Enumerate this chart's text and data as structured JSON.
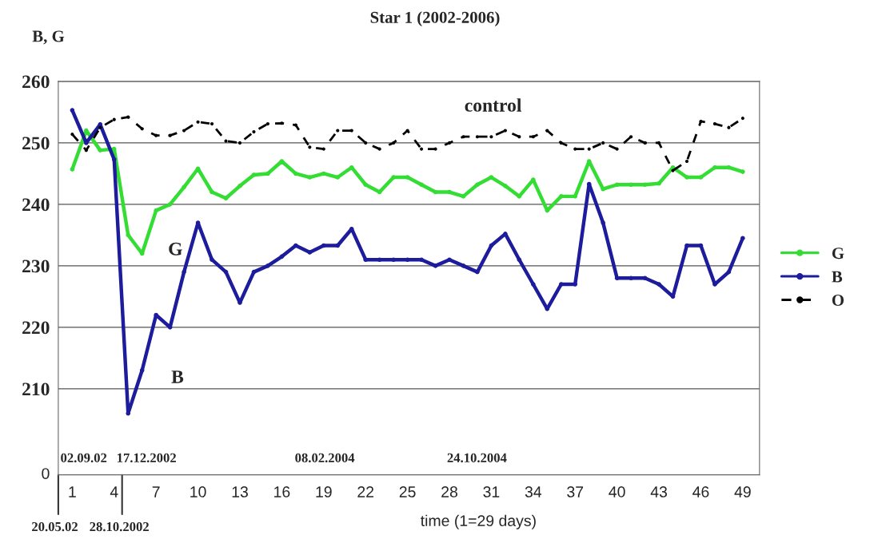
{
  "chart_data": {
    "type": "line",
    "title": "Star 1 (2002-2006)",
    "ylabel": "B, G",
    "xlabel": "time (1=29 days)",
    "x": [
      1,
      2,
      3,
      4,
      5,
      6,
      7,
      8,
      9,
      10,
      11,
      12,
      13,
      14,
      15,
      16,
      17,
      18,
      19,
      20,
      21,
      22,
      23,
      24,
      25,
      26,
      27,
      28,
      29,
      30,
      31,
      32,
      33,
      34,
      35,
      36,
      37,
      38,
      39,
      40,
      41,
      42,
      43,
      44,
      45,
      46,
      47,
      48,
      49
    ],
    "series": [
      {
        "name": "G",
        "color": "#33dd33",
        "line_style": "solid",
        "values": [
          245.7,
          252,
          248.8,
          249,
          235,
          232,
          239,
          240,
          242.8,
          245.8,
          242,
          241,
          243,
          244.8,
          245,
          247,
          245,
          244.4,
          245,
          244.4,
          246,
          243.2,
          242,
          244.4,
          244.4,
          243.2,
          242,
          242,
          241.3,
          243.2,
          244.4,
          243,
          241.3,
          244,
          239,
          241.3,
          241.3,
          247,
          242.5,
          243.2,
          243.2,
          243.2,
          243.4,
          246,
          244.4,
          244.4,
          246,
          246,
          245.3
        ]
      },
      {
        "name": "B",
        "color": "#1c1c9c",
        "line_style": "solid",
        "values": [
          255.3,
          250,
          253,
          247.3,
          206,
          213,
          222,
          220,
          229,
          237,
          231,
          229,
          224,
          229,
          230,
          231.5,
          233.3,
          232.2,
          233.3,
          233.3,
          236,
          231,
          231,
          231,
          231,
          231,
          230,
          231,
          230,
          229,
          233.3,
          235.2,
          231,
          227,
          223,
          227,
          227,
          243.3,
          237,
          228,
          228,
          228,
          227,
          225,
          233.3,
          233.3,
          227,
          229,
          234.5
        ]
      },
      {
        "name": "O",
        "color": "#000000",
        "line_style": "dashed",
        "values": [
          251.4,
          248.8,
          252.5,
          253.8,
          254.2,
          252.3,
          251.2,
          251.2,
          252,
          253.4,
          253.1,
          250.3,
          250,
          251.8,
          253.1,
          253.2,
          252.9,
          249.3,
          249,
          252,
          252,
          250,
          249,
          250,
          252,
          249,
          249,
          250,
          251,
          251,
          251,
          252,
          251,
          251,
          252,
          250,
          249,
          249,
          250,
          249,
          251,
          250,
          250,
          245.5,
          247,
          253.5,
          253.1,
          252.5,
          254
        ]
      }
    ],
    "xlim": [
      0,
      50.2
    ],
    "ylim": [
      196,
      260
    ],
    "xticks": [
      1,
      4,
      7,
      10,
      13,
      16,
      19,
      22,
      25,
      28,
      31,
      34,
      37,
      40,
      43,
      46,
      49
    ],
    "yticks": [
      210,
      220,
      230,
      240,
      250,
      260
    ],
    "grid": "y",
    "legend": "right",
    "marker": "circle",
    "annotations": [
      "control",
      "G",
      "B",
      "02.09.02",
      "17.12.2002",
      "08.02.2004",
      "24.10.2004",
      "20.05.02",
      "28.10.2002",
      "0"
    ]
  }
}
